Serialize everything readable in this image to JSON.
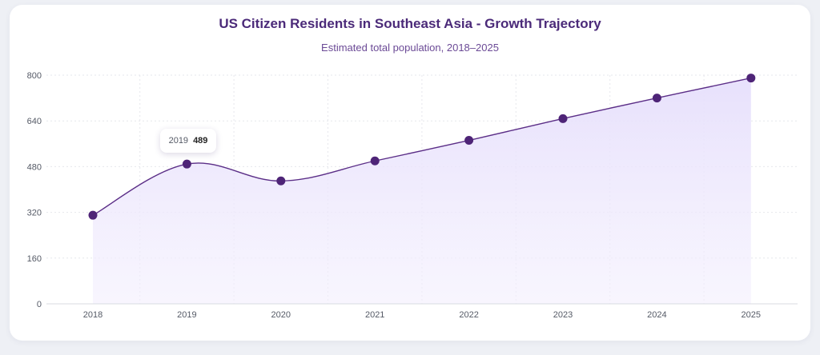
{
  "chart_data": {
    "type": "area",
    "title": "US Citizen Residents in Southeast Asia - Growth Trajectory",
    "subtitle": "Estimated total population, 2018–2025",
    "categories": [
      "2018",
      "2019",
      "2020",
      "2021",
      "2022",
      "2023",
      "2024",
      "2025"
    ],
    "values": [
      310,
      489,
      430,
      500,
      572,
      648,
      720,
      790
    ],
    "ylim": [
      0,
      800
    ],
    "yticks": [
      0,
      160,
      320,
      480,
      640,
      800
    ],
    "grid": true,
    "colors": {
      "line": "#5b2e87",
      "fill": "#ede8fd",
      "point": "#4e2477"
    },
    "tooltip": {
      "label": "2019",
      "value": "489"
    }
  }
}
